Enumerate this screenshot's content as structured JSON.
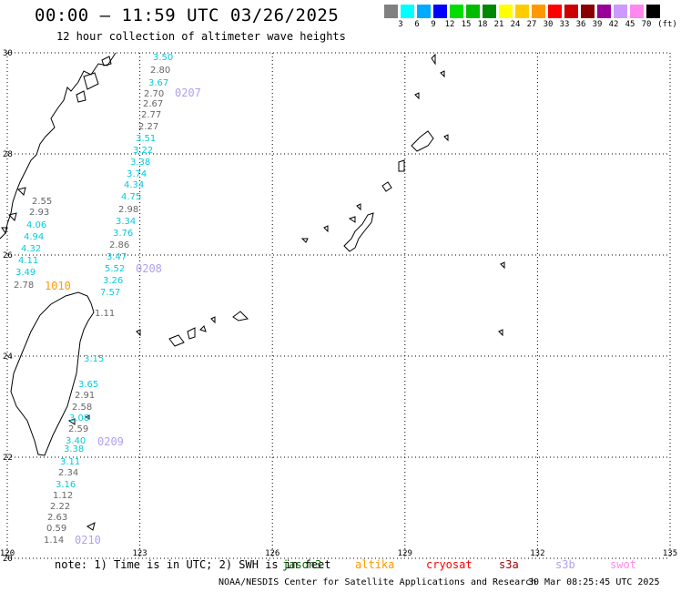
{
  "header": {
    "title": "00:00 — 11:59 UTC 03/26/2025",
    "subtitle": "12 hour collection of altimeter wave heights"
  },
  "legend": {
    "colors": [
      "#808080",
      "#00ffff",
      "#00aaff",
      "#0000ff",
      "#00dd00",
      "#00bb00",
      "#008800",
      "#ffff00",
      "#ffcc00",
      "#ff9900",
      "#ff0000",
      "#cc0000",
      "#880000",
      "#990099",
      "#cc99ff",
      "#ff88ee",
      "#000000"
    ],
    "labels": [
      "3",
      "6",
      "9",
      "12",
      "15",
      "18",
      "21",
      "24",
      "27",
      "30",
      "33",
      "36",
      "39",
      "42",
      "45",
      "70"
    ],
    "unit": "(ft)"
  },
  "axes": {
    "x_ticks": [
      "120",
      "123",
      "126",
      "129",
      "132",
      "135"
    ],
    "y_ticks": [
      "30",
      "28",
      "26",
      "24",
      "22",
      "20"
    ]
  },
  "track_labels": [
    {
      "text": "0207",
      "color": "#b0a0f0"
    },
    {
      "text": "0208",
      "color": "#b0a0f0"
    },
    {
      "text": "1010",
      "color": "#ff9900"
    },
    {
      "text": "0209",
      "color": "#b0a0f0"
    },
    {
      "text": "0210",
      "color": "#b0a0f0"
    }
  ],
  "wave_heights": [
    {
      "v": "3.50",
      "c": "#00ccdd"
    },
    {
      "v": "2.80",
      "c": "#666666"
    },
    {
      "v": "3.67",
      "c": "#00ccdd"
    },
    {
      "v": "2.70",
      "c": "#666666"
    },
    {
      "v": "2.67",
      "c": "#666666"
    },
    {
      "v": "2.77",
      "c": "#666666"
    },
    {
      "v": "2.27",
      "c": "#666666"
    },
    {
      "v": "3.51",
      "c": "#00ccdd"
    },
    {
      "v": "3.22",
      "c": "#00ccdd"
    },
    {
      "v": "3.38",
      "c": "#00ccdd"
    },
    {
      "v": "3.74",
      "c": "#00ccdd"
    },
    {
      "v": "4.34",
      "c": "#00ccdd"
    },
    {
      "v": "4.75",
      "c": "#00ccdd"
    },
    {
      "v": "2.98",
      "c": "#666666"
    },
    {
      "v": "3.34",
      "c": "#00ccdd"
    },
    {
      "v": "3.76",
      "c": "#00ccdd"
    },
    {
      "v": "2.86",
      "c": "#666666"
    },
    {
      "v": "3.47",
      "c": "#00ccdd"
    },
    {
      "v": "5.52",
      "c": "#00ccdd"
    },
    {
      "v": "3.26",
      "c": "#00ccdd"
    },
    {
      "v": "7.57",
      "c": "#00ccdd"
    },
    {
      "v": "2.55",
      "c": "#666666"
    },
    {
      "v": "2.93",
      "c": "#666666"
    },
    {
      "v": "4.06",
      "c": "#00ccdd"
    },
    {
      "v": "4.94",
      "c": "#00ccdd"
    },
    {
      "v": "4.32",
      "c": "#00ccdd"
    },
    {
      "v": "4.11",
      "c": "#00ccdd"
    },
    {
      "v": "3.49",
      "c": "#00ccdd"
    },
    {
      "v": "2.78",
      "c": "#666666"
    },
    {
      "v": "1.11",
      "c": "#666666"
    },
    {
      "v": "3.15",
      "c": "#00ccdd"
    },
    {
      "v": "3.65",
      "c": "#00ccdd"
    },
    {
      "v": "2.91",
      "c": "#666666"
    },
    {
      "v": "2.58",
      "c": "#666666"
    },
    {
      "v": "3.08",
      "c": "#00ccdd"
    },
    {
      "v": "2.59",
      "c": "#666666"
    },
    {
      "v": "3.40",
      "c": "#00ccdd"
    },
    {
      "v": "3.38",
      "c": "#00ccdd"
    },
    {
      "v": "3.11",
      "c": "#00ccdd"
    },
    {
      "v": "2.34",
      "c": "#666666"
    },
    {
      "v": "3.16",
      "c": "#00ccdd"
    },
    {
      "v": "1.12",
      "c": "#666666"
    },
    {
      "v": "2.22",
      "c": "#666666"
    },
    {
      "v": "2.63",
      "c": "#666666"
    },
    {
      "v": "0.59",
      "c": "#666666"
    },
    {
      "v": "1.14",
      "c": "#666666"
    }
  ],
  "footer": {
    "note": "note: 1) Time is in UTC; 2) SWH is in feet",
    "satellites": [
      {
        "name": "jason3",
        "color": "#006600"
      },
      {
        "name": "altika",
        "color": "#ff9900"
      },
      {
        "name": "cryosat",
        "color": "#ff0000"
      },
      {
        "name": "s3a",
        "color": "#990000"
      },
      {
        "name": "s3b",
        "color": "#b0a0f0"
      },
      {
        "name": "swot",
        "color": "#ff88ee"
      }
    ],
    "credit": "NOAA/NESDIS Center for Satellite Applications and Research",
    "timestamp": "30 Mar 08:25:45 UTC 2025"
  }
}
